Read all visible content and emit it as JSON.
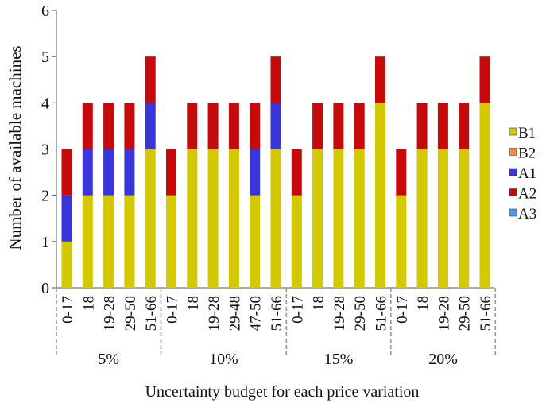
{
  "chart_data": {
    "type": "bar",
    "stacked": true,
    "title": "",
    "xlabel": "Uncertainty budget for each price variation",
    "ylabel": "Number of available machines",
    "ylim": [
      0,
      6
    ],
    "yticks": [
      0,
      1,
      2,
      3,
      4,
      5,
      6
    ],
    "grid": false,
    "legend_position": "right",
    "groups": [
      {
        "label": "5%",
        "categories": [
          "0-17",
          "18",
          "19-28",
          "29-50",
          "51-66"
        ]
      },
      {
        "label": "10%",
        "categories": [
          "0-17",
          "18",
          "19-28",
          "29-48",
          "47-50",
          "51-66"
        ]
      },
      {
        "label": "15%",
        "categories": [
          "0-17",
          "18",
          "19-28",
          "29-50",
          "51-66"
        ]
      },
      {
        "label": "20%",
        "categories": [
          "0-17",
          "18",
          "19-28",
          "29-50",
          "51-66"
        ]
      }
    ],
    "series": [
      {
        "name": "B1",
        "color": "#d4c800",
        "values": [
          1,
          2,
          2,
          2,
          3,
          2,
          3,
          3,
          3,
          2,
          3,
          2,
          3,
          3,
          3,
          4,
          2,
          3,
          3,
          3,
          4
        ]
      },
      {
        "name": "B2",
        "color": "#f08c40",
        "values": [
          0,
          0,
          0,
          0,
          0,
          0,
          0,
          0,
          0,
          0,
          0,
          0,
          0,
          0,
          0,
          0,
          0,
          0,
          0,
          0,
          0
        ]
      },
      {
        "name": "A1",
        "color": "#3a35d8",
        "values": [
          1,
          1,
          1,
          1,
          1,
          0,
          0,
          0,
          0,
          1,
          1,
          0,
          0,
          0,
          0,
          0,
          0,
          0,
          0,
          0,
          0
        ]
      },
      {
        "name": "A2",
        "color": "#c40a0a",
        "values": [
          1,
          1,
          1,
          1,
          1,
          1,
          1,
          1,
          1,
          1,
          1,
          1,
          1,
          1,
          1,
          1,
          1,
          1,
          1,
          1,
          1
        ]
      },
      {
        "name": "A3",
        "color": "#4a9be0",
        "values": [
          0,
          0,
          0,
          0,
          0,
          0,
          0,
          0,
          0,
          0,
          0,
          0,
          0,
          0,
          0,
          0,
          0,
          0,
          0,
          0,
          0
        ]
      }
    ]
  }
}
